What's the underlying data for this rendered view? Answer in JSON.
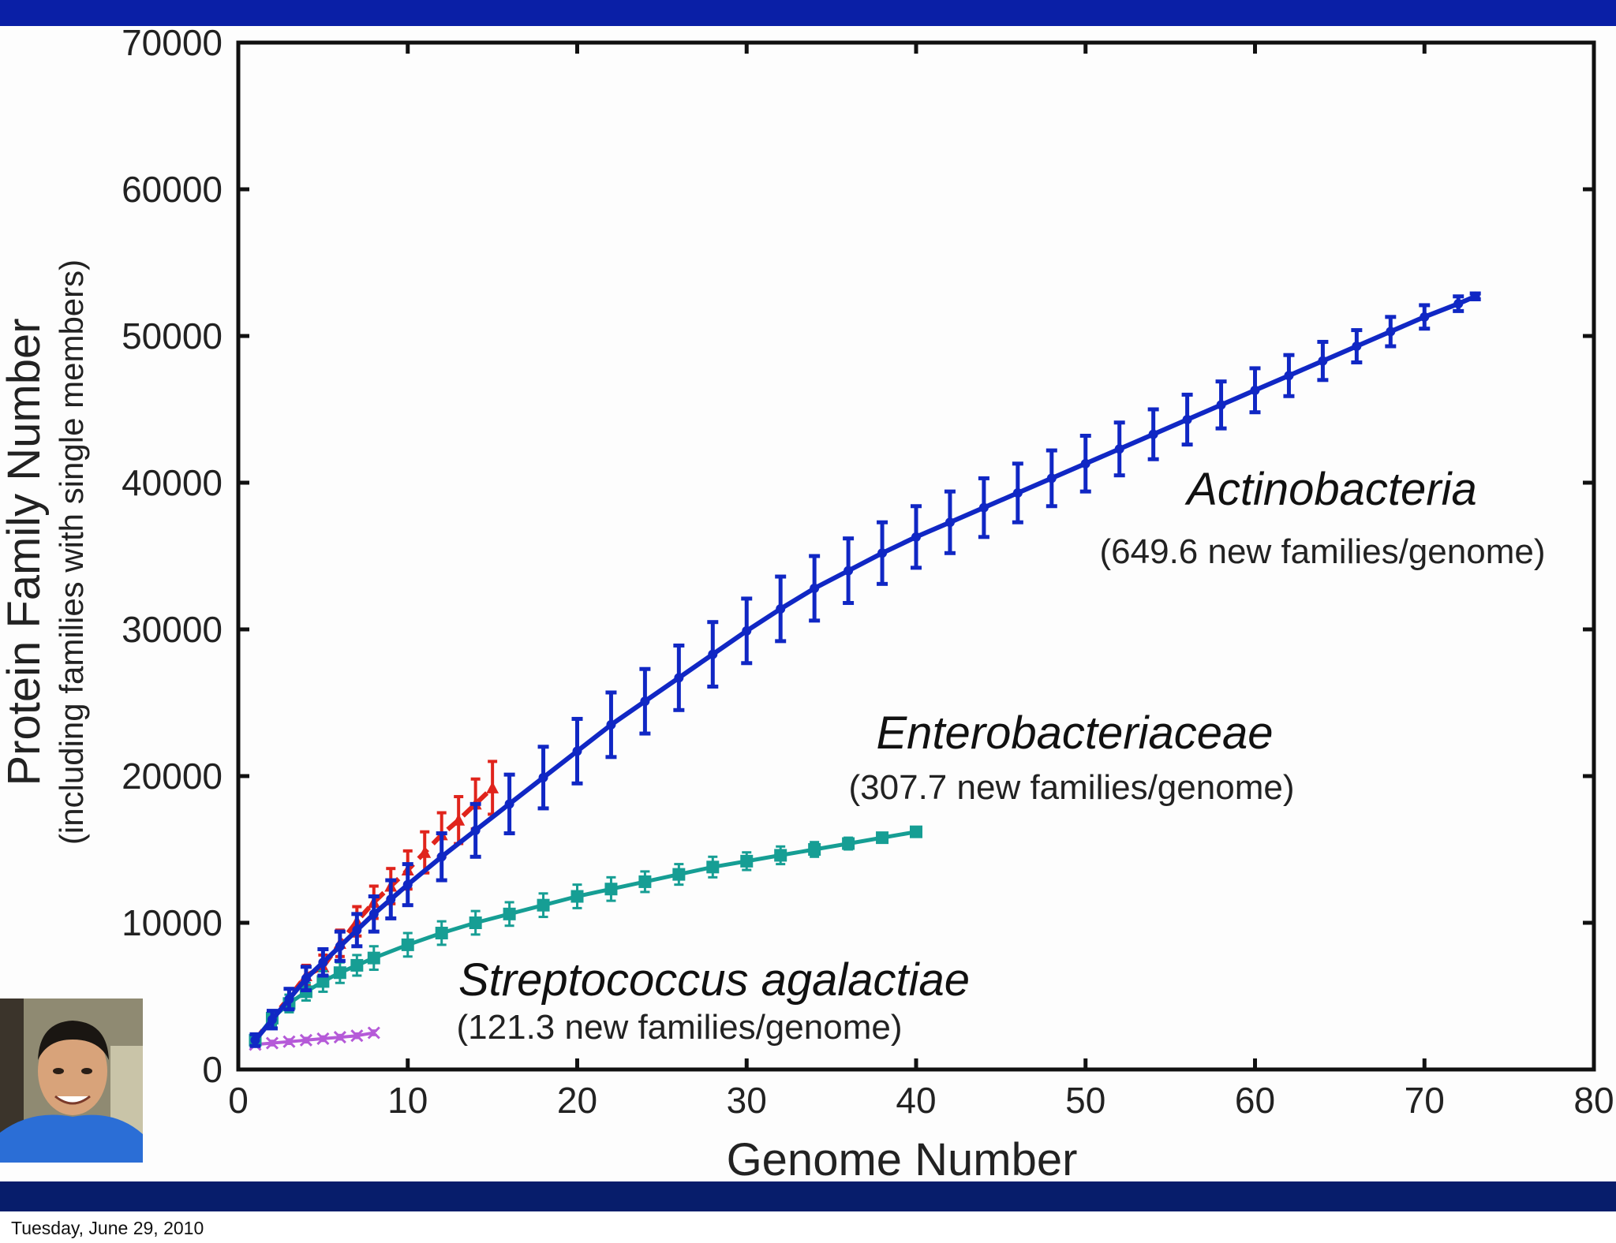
{
  "footer": {
    "date": "Tuesday, June 29, 2010"
  },
  "colors": {
    "top_bar": "#0a1fa6",
    "bottom_bar": "#071d6b",
    "actinobacteria": "#1027c4",
    "enterobacteriaceae": "#169e94",
    "streptococcus": "#b55ad8",
    "overlap_red": "#e0241c"
  },
  "icons": {
    "presenter": "presenter-photo"
  },
  "chart_data": {
    "type": "line",
    "xlabel": "Genome Number",
    "ylabel": "Protein Family Number",
    "ylabel_sub": "(including families with single members)",
    "xlim": [
      0,
      80
    ],
    "ylim": [
      0,
      70000
    ],
    "xticks": [
      "0",
      "10",
      "20",
      "30",
      "40",
      "50",
      "60",
      "70",
      "80"
    ],
    "yticks": [
      "0",
      "10000",
      "20000",
      "30000",
      "40000",
      "50000",
      "60000",
      "70000"
    ],
    "grid": false,
    "annotations": [
      {
        "id": "actino",
        "name": "Actinobacteria",
        "rate": "(649.6 new families/genome)"
      },
      {
        "id": "entero",
        "name": "Enterobacteriaceae",
        "rate": "(307.7 new families/genome)"
      },
      {
        "id": "strep",
        "name": "Streptococcus agalactiae",
        "rate": "(121.3 new families/genome)"
      }
    ],
    "series": [
      {
        "name": "Actinobacteria",
        "marker": "circle",
        "x": [
          1,
          2,
          3,
          4,
          5,
          6,
          7,
          8,
          9,
          10,
          12,
          14,
          16,
          18,
          20,
          22,
          24,
          26,
          28,
          30,
          32,
          34,
          36,
          38,
          40,
          42,
          44,
          46,
          48,
          50,
          52,
          54,
          56,
          58,
          60,
          62,
          64,
          66,
          68,
          70,
          72,
          73
        ],
        "y": [
          2000,
          3400,
          4800,
          6200,
          7300,
          8400,
          9500,
          10600,
          11600,
          12600,
          14500,
          16300,
          18100,
          19900,
          21700,
          23500,
          25100,
          26700,
          28300,
          29900,
          31400,
          32800,
          34000,
          35200,
          36300,
          37300,
          38300,
          39300,
          40300,
          41300,
          42300,
          43300,
          44300,
          45300,
          46300,
          47300,
          48300,
          49300,
          50300,
          51300,
          52200,
          52700
        ],
        "err": [
          400,
          600,
          700,
          800,
          900,
          1000,
          1100,
          1200,
          1300,
          1400,
          1600,
          1800,
          2000,
          2100,
          2200,
          2200,
          2200,
          2200,
          2200,
          2200,
          2200,
          2200,
          2200,
          2100,
          2100,
          2100,
          2000,
          2000,
          1900,
          1900,
          1800,
          1700,
          1700,
          1600,
          1500,
          1400,
          1300,
          1100,
          1000,
          800,
          500,
          200
        ]
      },
      {
        "name": "Enterobacteriaceae",
        "marker": "square",
        "x": [
          1,
          2,
          3,
          4,
          5,
          6,
          7,
          8,
          10,
          12,
          14,
          16,
          18,
          20,
          22,
          24,
          26,
          28,
          30,
          32,
          34,
          36,
          38,
          40
        ],
        "y": [
          2000,
          3500,
          4500,
          5300,
          6000,
          6600,
          7100,
          7600,
          8500,
          9300,
          10000,
          10600,
          11200,
          11800,
          12300,
          12800,
          13300,
          13800,
          14200,
          14600,
          15000,
          15400,
          15800,
          16200
        ],
        "err": [
          300,
          500,
          600,
          600,
          700,
          700,
          700,
          800,
          800,
          800,
          800,
          800,
          800,
          800,
          800,
          700,
          700,
          700,
          600,
          600,
          500,
          400,
          300,
          200
        ]
      },
      {
        "name": "Streptococcus agalactiae",
        "marker": "x",
        "x": [
          1,
          2,
          3,
          4,
          5,
          6,
          7,
          8
        ],
        "y": [
          1700,
          1800,
          1900,
          2000,
          2100,
          2200,
          2300,
          2500
        ],
        "err": [
          150,
          150,
          150,
          150,
          150,
          150,
          150,
          150
        ]
      },
      {
        "name": "",
        "marker": "triangle",
        "x": [
          1,
          2,
          3,
          4,
          5,
          6,
          7,
          8,
          9,
          10,
          11,
          12,
          13,
          14,
          15
        ],
        "y": [
          2000,
          3500,
          4900,
          6400,
          7000,
          8600,
          10100,
          11400,
          12500,
          13600,
          14800,
          16000,
          17000,
          18100,
          19200
        ],
        "err": [
          400,
          500,
          600,
          700,
          800,
          900,
          1000,
          1100,
          1200,
          1300,
          1400,
          1500,
          1600,
          1700,
          1800
        ]
      }
    ]
  }
}
